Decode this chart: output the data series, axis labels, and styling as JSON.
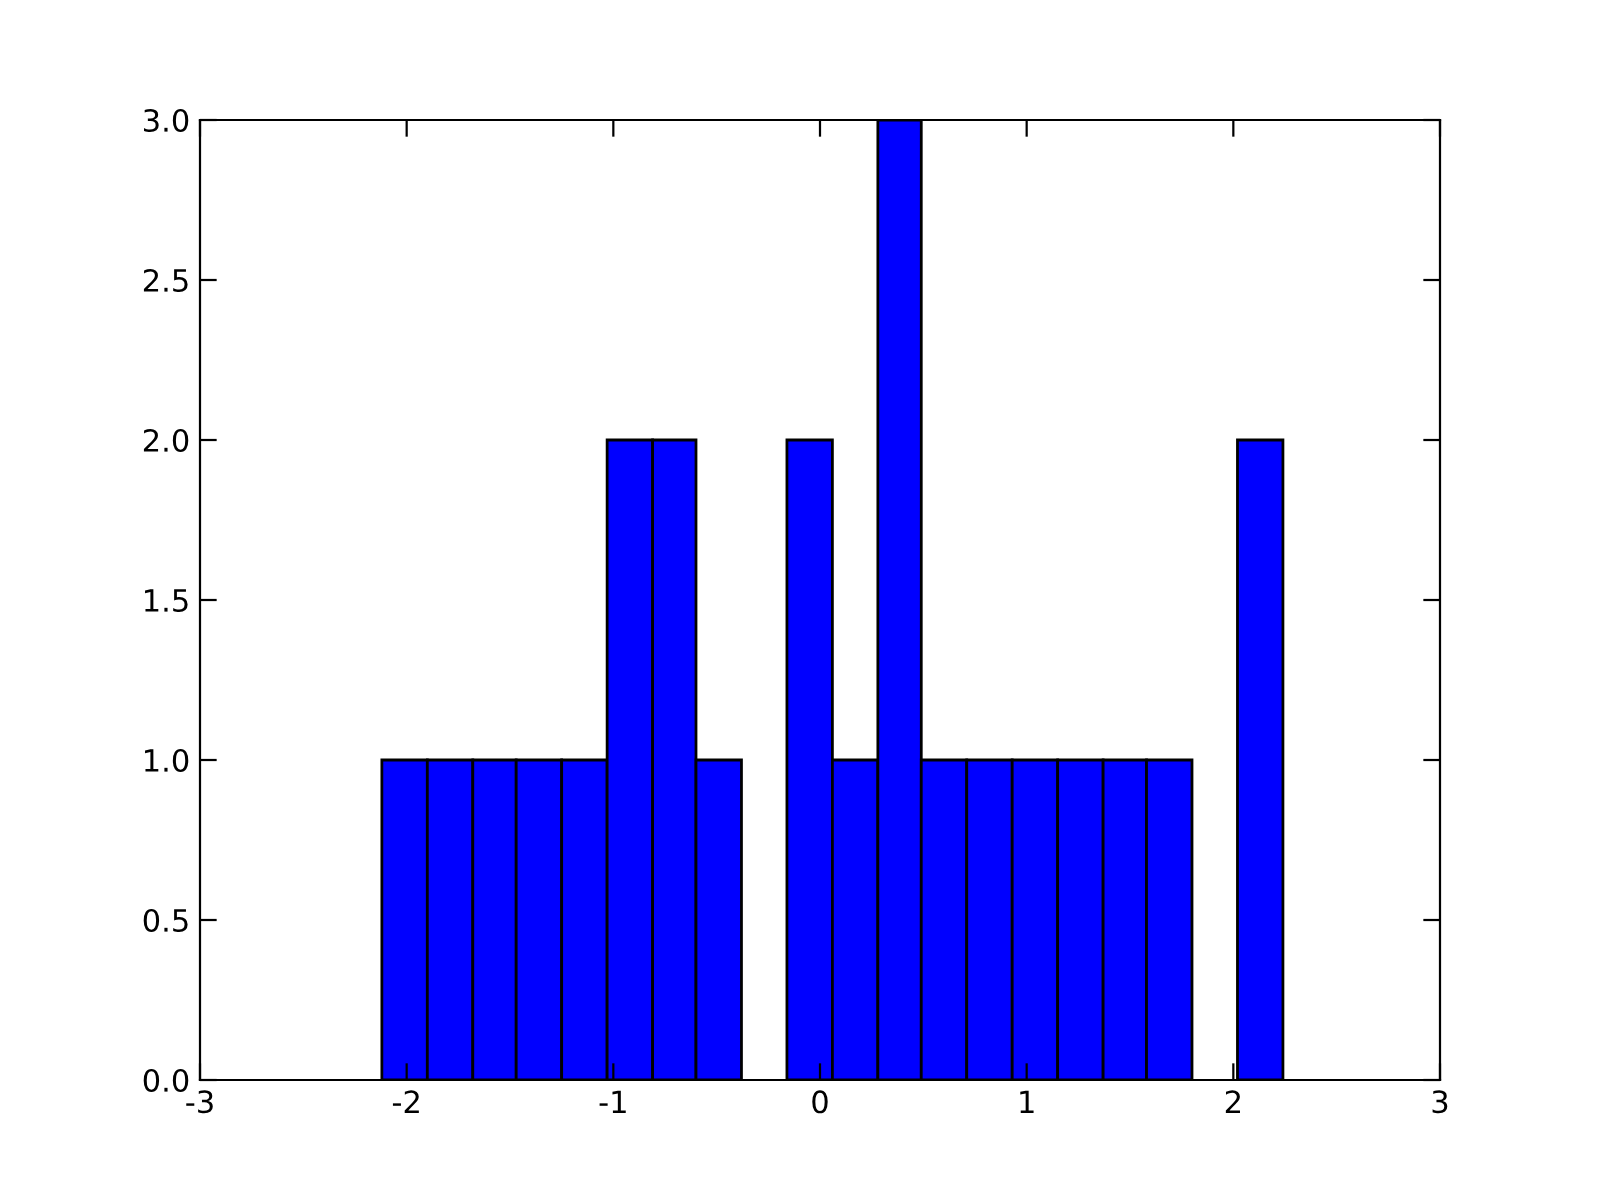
{
  "chart_data": {
    "type": "histogram",
    "bins": [
      -2.12,
      -1.9,
      -1.68,
      -1.47,
      -1.25,
      -1.03,
      -0.81,
      -0.6,
      -0.38,
      -0.16,
      0.06,
      0.28,
      0.49,
      0.71,
      0.93,
      1.15,
      1.37,
      1.58,
      1.8,
      2.02,
      2.24
    ],
    "values": [
      1,
      1,
      1,
      1,
      1,
      2,
      2,
      1,
      0,
      2,
      1,
      3,
      1,
      1,
      1,
      1,
      1,
      1,
      0,
      2
    ],
    "color": "#0000ff",
    "xlim": [
      -3,
      3
    ],
    "xticks": [
      -3,
      -2,
      -1,
      0,
      1,
      2,
      3
    ],
    "ylim": [
      0,
      3
    ],
    "yticks": [
      {
        "value": 0,
        "label": "0.0"
      },
      {
        "value": 0.5,
        "label": "0.5"
      },
      {
        "value": 1,
        "label": "1.0"
      },
      {
        "value": 1.5,
        "label": "1.5"
      },
      {
        "value": 2,
        "label": "2.0"
      },
      {
        "value": 2.5,
        "label": "2.5"
      },
      {
        "value": 3,
        "label": "3.0"
      }
    ],
    "grid": false
  }
}
